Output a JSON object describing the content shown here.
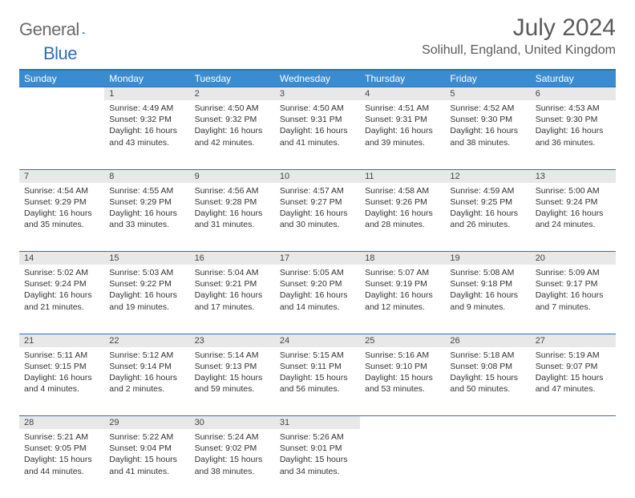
{
  "brand": {
    "part1": "General",
    "part2": "Blue"
  },
  "title": "July 2024",
  "location": "Solihull, England, United Kingdom",
  "colors": {
    "header_bg": "#3b8bd0",
    "header_text": "#ffffff",
    "divider": "#2f6fb3",
    "daynum_bg": "#e8e8e8",
    "text": "#333333",
    "muted": "#5a5a5a",
    "logo_gray": "#6b6b6b",
    "logo_blue": "#2f6fb3"
  },
  "day_labels": [
    "Sunday",
    "Monday",
    "Tuesday",
    "Wednesday",
    "Thursday",
    "Friday",
    "Saturday"
  ],
  "weeks": [
    [
      null,
      {
        "n": 1,
        "sr": "4:49 AM",
        "ss": "9:32 PM",
        "dl": "16 hours and 43 minutes."
      },
      {
        "n": 2,
        "sr": "4:50 AM",
        "ss": "9:32 PM",
        "dl": "16 hours and 42 minutes."
      },
      {
        "n": 3,
        "sr": "4:50 AM",
        "ss": "9:31 PM",
        "dl": "16 hours and 41 minutes."
      },
      {
        "n": 4,
        "sr": "4:51 AM",
        "ss": "9:31 PM",
        "dl": "16 hours and 39 minutes."
      },
      {
        "n": 5,
        "sr": "4:52 AM",
        "ss": "9:30 PM",
        "dl": "16 hours and 38 minutes."
      },
      {
        "n": 6,
        "sr": "4:53 AM",
        "ss": "9:30 PM",
        "dl": "16 hours and 36 minutes."
      }
    ],
    [
      {
        "n": 7,
        "sr": "4:54 AM",
        "ss": "9:29 PM",
        "dl": "16 hours and 35 minutes."
      },
      {
        "n": 8,
        "sr": "4:55 AM",
        "ss": "9:29 PM",
        "dl": "16 hours and 33 minutes."
      },
      {
        "n": 9,
        "sr": "4:56 AM",
        "ss": "9:28 PM",
        "dl": "16 hours and 31 minutes."
      },
      {
        "n": 10,
        "sr": "4:57 AM",
        "ss": "9:27 PM",
        "dl": "16 hours and 30 minutes."
      },
      {
        "n": 11,
        "sr": "4:58 AM",
        "ss": "9:26 PM",
        "dl": "16 hours and 28 minutes."
      },
      {
        "n": 12,
        "sr": "4:59 AM",
        "ss": "9:25 PM",
        "dl": "16 hours and 26 minutes."
      },
      {
        "n": 13,
        "sr": "5:00 AM",
        "ss": "9:24 PM",
        "dl": "16 hours and 24 minutes."
      }
    ],
    [
      {
        "n": 14,
        "sr": "5:02 AM",
        "ss": "9:24 PM",
        "dl": "16 hours and 21 minutes."
      },
      {
        "n": 15,
        "sr": "5:03 AM",
        "ss": "9:22 PM",
        "dl": "16 hours and 19 minutes."
      },
      {
        "n": 16,
        "sr": "5:04 AM",
        "ss": "9:21 PM",
        "dl": "16 hours and 17 minutes."
      },
      {
        "n": 17,
        "sr": "5:05 AM",
        "ss": "9:20 PM",
        "dl": "16 hours and 14 minutes."
      },
      {
        "n": 18,
        "sr": "5:07 AM",
        "ss": "9:19 PM",
        "dl": "16 hours and 12 minutes."
      },
      {
        "n": 19,
        "sr": "5:08 AM",
        "ss": "9:18 PM",
        "dl": "16 hours and 9 minutes."
      },
      {
        "n": 20,
        "sr": "5:09 AM",
        "ss": "9:17 PM",
        "dl": "16 hours and 7 minutes."
      }
    ],
    [
      {
        "n": 21,
        "sr": "5:11 AM",
        "ss": "9:15 PM",
        "dl": "16 hours and 4 minutes."
      },
      {
        "n": 22,
        "sr": "5:12 AM",
        "ss": "9:14 PM",
        "dl": "16 hours and 2 minutes."
      },
      {
        "n": 23,
        "sr": "5:14 AM",
        "ss": "9:13 PM",
        "dl": "15 hours and 59 minutes."
      },
      {
        "n": 24,
        "sr": "5:15 AM",
        "ss": "9:11 PM",
        "dl": "15 hours and 56 minutes."
      },
      {
        "n": 25,
        "sr": "5:16 AM",
        "ss": "9:10 PM",
        "dl": "15 hours and 53 minutes."
      },
      {
        "n": 26,
        "sr": "5:18 AM",
        "ss": "9:08 PM",
        "dl": "15 hours and 50 minutes."
      },
      {
        "n": 27,
        "sr": "5:19 AM",
        "ss": "9:07 PM",
        "dl": "15 hours and 47 minutes."
      }
    ],
    [
      {
        "n": 28,
        "sr": "5:21 AM",
        "ss": "9:05 PM",
        "dl": "15 hours and 44 minutes."
      },
      {
        "n": 29,
        "sr": "5:22 AM",
        "ss": "9:04 PM",
        "dl": "15 hours and 41 minutes."
      },
      {
        "n": 30,
        "sr": "5:24 AM",
        "ss": "9:02 PM",
        "dl": "15 hours and 38 minutes."
      },
      {
        "n": 31,
        "sr": "5:26 AM",
        "ss": "9:01 PM",
        "dl": "15 hours and 34 minutes."
      },
      null,
      null,
      null
    ]
  ],
  "labels": {
    "sunrise": "Sunrise:",
    "sunset": "Sunset:",
    "daylight": "Daylight:"
  }
}
